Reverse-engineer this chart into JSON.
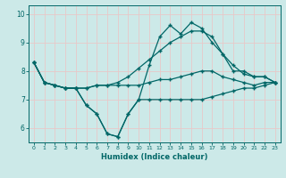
{
  "xlabel": "Humidex (Indice chaleur)",
  "bg_color": "#cce9e8",
  "grid_color": "#e8c8c8",
  "line_color": "#006666",
  "yticks": [
    6,
    7,
    8,
    9,
    10
  ],
  "xticks": [
    0,
    1,
    2,
    3,
    4,
    5,
    6,
    7,
    8,
    9,
    10,
    11,
    12,
    13,
    14,
    15,
    16,
    17,
    18,
    19,
    20,
    21,
    22,
    23
  ],
  "xlim": [
    -0.5,
    23.5
  ],
  "ylim": [
    5.5,
    10.3
  ],
  "line1": [
    8.3,
    7.6,
    7.5,
    7.4,
    7.4,
    6.8,
    6.5,
    5.8,
    5.7,
    6.5,
    7.0,
    8.2,
    9.2,
    9.6,
    9.3,
    9.7,
    9.5,
    9.0,
    8.6,
    8.0,
    8.0,
    7.8,
    7.8,
    7.6
  ],
  "line2": [
    8.3,
    7.6,
    7.5,
    7.4,
    7.4,
    7.4,
    7.5,
    7.5,
    7.6,
    7.8,
    8.1,
    8.4,
    8.7,
    9.0,
    9.2,
    9.4,
    9.4,
    9.2,
    8.6,
    8.2,
    7.9,
    7.8,
    7.8,
    7.6
  ],
  "line3": [
    8.3,
    7.6,
    7.5,
    7.4,
    7.4,
    7.4,
    7.5,
    7.5,
    7.5,
    7.5,
    7.5,
    7.6,
    7.7,
    7.7,
    7.8,
    7.9,
    8.0,
    8.0,
    7.8,
    7.7,
    7.6,
    7.5,
    7.6,
    7.6
  ],
  "line4": [
    8.3,
    7.6,
    7.5,
    7.4,
    7.4,
    6.8,
    6.5,
    5.8,
    5.7,
    6.5,
    7.0,
    7.0,
    7.0,
    7.0,
    7.0,
    7.0,
    7.0,
    7.1,
    7.2,
    7.3,
    7.4,
    7.4,
    7.5,
    7.6
  ]
}
